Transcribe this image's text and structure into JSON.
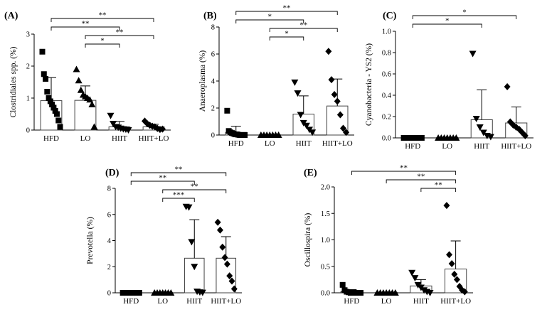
{
  "chart_data": [
    {
      "panel": "(A)",
      "type": "bar",
      "ylabel": "Clostridiales spp. (%)",
      "categories": [
        "HFD",
        "LO",
        "HIIT",
        "HIIT+LO"
      ],
      "markers": [
        "square",
        "triangle-up",
        "triangle-down",
        "diamond"
      ],
      "ylim": [
        0,
        3
      ],
      "yticks": [
        0,
        1,
        2,
        3
      ],
      "yticklabels": [
        "0",
        "1",
        "2",
        "3"
      ],
      "means": [
        0.92,
        0.93,
        0.1,
        0.1
      ],
      "sd": [
        0.72,
        0.45,
        0.17,
        0.08
      ],
      "points": [
        [
          2.45,
          1.75,
          1.6,
          1.2,
          1.0,
          0.9,
          0.8,
          0.7,
          0.6,
          0.5,
          0.3,
          0.1
        ],
        [
          1.9,
          1.55,
          1.25,
          1.1,
          1.05,
          1.0,
          0.95,
          0.8,
          0.1
        ],
        [
          0.45,
          0.2,
          0.1,
          0.08,
          0.05,
          0.03,
          0.02,
          0.0
        ],
        [
          0.28,
          0.2,
          0.15,
          0.12,
          0.1,
          0.05,
          0.02,
          0.03
        ]
      ],
      "significance": [
        {
          "from": "HFD",
          "to": "HIIT+LO",
          "label": "**"
        },
        {
          "from": "HFD",
          "to": "HIIT",
          "label": "**"
        },
        {
          "from": "LO",
          "to": "HIIT+LO",
          "label": "**"
        },
        {
          "from": "LO",
          "to": "HIIT",
          "label": "*"
        }
      ]
    },
    {
      "panel": "(B)",
      "type": "bar",
      "ylabel": "Anaeroplasma (%)",
      "categories": [
        "HFD",
        "LO",
        "HIIT",
        "HIIT+LO"
      ],
      "markers": [
        "square",
        "triangle-up",
        "triangle-down",
        "diamond"
      ],
      "ylim": [
        0,
        8
      ],
      "yticks": [
        0,
        2,
        4,
        6,
        8
      ],
      "yticklabels": [
        "0",
        "2",
        "4",
        "6",
        "8"
      ],
      "means": [
        0.2,
        0.02,
        1.55,
        2.15
      ],
      "sd": [
        0.45,
        0.02,
        1.35,
        2.0
      ],
      "points": [
        [
          1.8,
          0.3,
          0.2,
          0.15,
          0.1,
          0.05,
          0.05,
          0.02,
          0.0,
          0.0,
          0.0,
          0.0
        ],
        [
          0.0,
          0.0,
          0.0,
          0.0,
          0.0,
          0.0,
          0.0
        ],
        [
          3.9,
          3.1,
          1.5,
          0.9,
          0.7,
          0.4,
          0.2
        ],
        [
          6.2,
          4.1,
          3.0,
          2.5,
          1.5,
          0.5,
          0.2
        ]
      ],
      "significance": [
        {
          "from": "HFD",
          "to": "HIIT+LO",
          "label": "**"
        },
        {
          "from": "HFD",
          "to": "HIIT",
          "label": "*"
        },
        {
          "from": "LO",
          "to": "HIIT+LO",
          "label": "**"
        },
        {
          "from": "LO",
          "to": "HIIT",
          "label": "*"
        }
      ]
    },
    {
      "panel": "(C)",
      "type": "bar",
      "ylabel": "Cyanobacteria - YS2 (%)",
      "categories": [
        "HFD",
        "LO",
        "HIIT",
        "HIIT+LO"
      ],
      "markers": [
        "square",
        "triangle-up",
        "triangle-down",
        "diamond"
      ],
      "ylim": [
        0,
        1
      ],
      "yticks": [
        0,
        0.2,
        0.4,
        0.6,
        0.8,
        1.0
      ],
      "yticklabels": [
        "0.0",
        "0.2",
        "0.4",
        "0.6",
        "0.8",
        "1.0"
      ],
      "means": [
        0.005,
        0.002,
        0.17,
        0.14
      ],
      "sd": [
        0.005,
        0.002,
        0.28,
        0.15
      ],
      "points": [
        [
          0.0,
          0.0,
          0.0,
          0.0,
          0.0,
          0.0,
          0.0,
          0.0,
          0.0,
          0.0,
          0.0
        ],
        [
          0.0,
          0.0,
          0.0,
          0.0,
          0.0,
          0.0,
          0.0
        ],
        [
          0.79,
          0.18,
          0.1,
          0.05,
          0.02,
          0.01
        ],
        [
          0.48,
          0.15,
          0.12,
          0.1,
          0.08,
          0.05,
          0.02
        ]
      ],
      "significance": [
        {
          "from": "HFD",
          "to": "HIIT+LO",
          "label": "*"
        },
        {
          "from": "HFD",
          "to": "HIIT",
          "label": "*"
        }
      ]
    },
    {
      "panel": "(D)",
      "type": "bar",
      "ylabel": "Prevotella (%)",
      "categories": [
        "HFD",
        "LO",
        "HIIT",
        "HIIT+LO"
      ],
      "markers": [
        "square",
        "triangle-up",
        "triangle-down",
        "diamond"
      ],
      "ylim": [
        0,
        8
      ],
      "yticks": [
        0,
        2,
        4,
        6,
        8
      ],
      "yticklabels": [
        "0",
        "2",
        "4",
        "6",
        "8"
      ],
      "means": [
        0.02,
        0.01,
        2.65,
        2.65
      ],
      "sd": [
        0.02,
        0.01,
        2.95,
        1.65
      ],
      "points": [
        [
          0.0,
          0.0,
          0.0,
          0.0,
          0.0,
          0.0,
          0.0,
          0.0,
          0.0,
          0.0
        ],
        [
          0.0,
          0.0,
          0.0,
          0.0,
          0.0,
          0.0,
          0.0
        ],
        [
          6.6,
          6.55,
          3.9,
          2.0,
          0.1,
          0.05,
          0.02
        ],
        [
          5.4,
          4.8,
          3.5,
          2.7,
          2.2,
          1.3,
          0.9,
          0.3
        ]
      ],
      "significance": [
        {
          "from": "HFD",
          "to": "HIIT+LO",
          "label": "**"
        },
        {
          "from": "HFD",
          "to": "HIIT",
          "label": "**"
        },
        {
          "from": "LO",
          "to": "HIIT+LO",
          "label": "**"
        },
        {
          "from": "LO",
          "to": "HIIT",
          "label": "***"
        }
      ]
    },
    {
      "panel": "(E)",
      "type": "bar",
      "ylabel": "Oscillospira (%)",
      "categories": [
        "HFD",
        "LO",
        "HIIT",
        "HIIT+LO"
      ],
      "markers": [
        "square",
        "triangle-up",
        "triangle-down",
        "diamond"
      ],
      "ylim": [
        0,
        2
      ],
      "yticks": [
        0,
        0.5,
        1.0,
        1.5,
        2.0
      ],
      "yticklabels": [
        "0.0",
        "0.5",
        "1.0",
        "1.5",
        "2.0"
      ],
      "means": [
        0.025,
        0.005,
        0.13,
        0.45
      ],
      "sd": [
        0.035,
        0.005,
        0.12,
        0.53
      ],
      "points": [
        [
          0.15,
          0.05,
          0.02,
          0.01,
          0.0,
          0.0,
          0.0,
          0.0,
          0.0,
          0.0
        ],
        [
          0.0,
          0.0,
          0.0,
          0.0,
          0.0,
          0.0,
          0.0
        ],
        [
          0.38,
          0.28,
          0.15,
          0.1,
          0.05,
          0.02,
          0.0
        ],
        [
          1.65,
          0.72,
          0.55,
          0.35,
          0.25,
          0.12,
          0.05,
          0.02
        ]
      ],
      "significance": [
        {
          "from": "HFD",
          "to": "HIIT+LO",
          "label": "**"
        },
        {
          "from": "LO",
          "to": "HIIT+LO",
          "label": "**"
        },
        {
          "from": "HIIT",
          "to": "HIIT+LO",
          "label": "**"
        }
      ]
    }
  ]
}
